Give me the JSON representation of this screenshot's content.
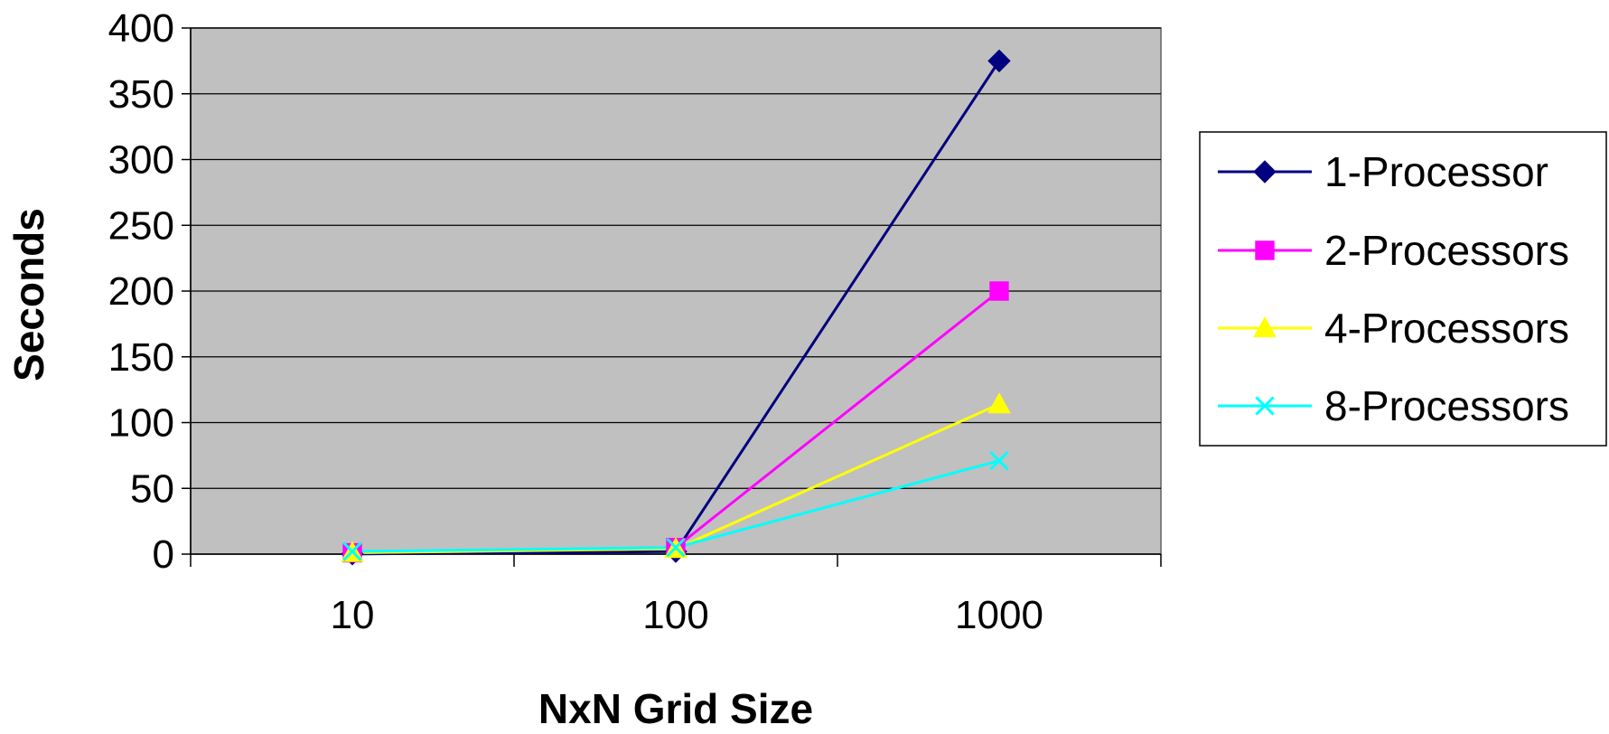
{
  "chart_data": {
    "type": "line",
    "title": "",
    "xlabel": "NxN Grid Size",
    "ylabel": "Seconds",
    "categories": [
      "10",
      "100",
      "1000"
    ],
    "ylim": [
      0,
      400
    ],
    "yticks": [
      0,
      50,
      100,
      150,
      200,
      250,
      300,
      350,
      400
    ],
    "grid": true,
    "legend_position": "right",
    "plot_background": "#C0C0C0",
    "series": [
      {
        "name": "1-Processor",
        "values": [
          0.1,
          2,
          375
        ],
        "color": "#000080",
        "marker": "diamond"
      },
      {
        "name": "2-Processors",
        "values": [
          1,
          5,
          200
        ],
        "color": "#FF00FF",
        "marker": "square"
      },
      {
        "name": "4-Processors",
        "values": [
          1,
          4,
          114
        ],
        "color": "#FFFF00",
        "marker": "triangle"
      },
      {
        "name": "8-Processors",
        "values": [
          2,
          5,
          71
        ],
        "color": "#00FFFF",
        "marker": "x"
      }
    ]
  }
}
